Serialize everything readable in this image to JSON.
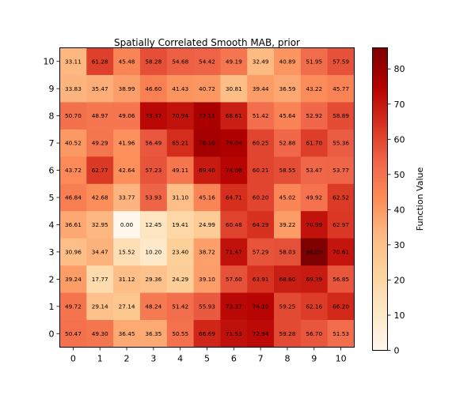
{
  "chart_data": {
    "type": "heatmap",
    "title": "Spatially Correlated Smooth MAB, prior",
    "x_ticks": [
      "0",
      "1",
      "2",
      "3",
      "4",
      "5",
      "6",
      "7",
      "8",
      "9",
      "10"
    ],
    "y_ticks": [
      "0",
      "1",
      "2",
      "3",
      "4",
      "5",
      "6",
      "7",
      "8",
      "9",
      "10"
    ],
    "row_order": "top row is y = 10, bottom row is y = 0",
    "rows": [
      [
        "33.11",
        "61.28",
        "45.48",
        "58.28",
        "54.68",
        "54.42",
        "49.19",
        "32.49",
        "40.89",
        "51.95",
        "57.59"
      ],
      [
        "33.83",
        "35.47",
        "38.99",
        "46.60",
        "41.43",
        "40.72",
        "30.81",
        "39.44",
        "36.59",
        "43.22",
        "45.77"
      ],
      [
        "50.70",
        "48.97",
        "49.06",
        "73.37",
        "70.94",
        "77.11",
        "68.61",
        "51.42",
        "45.64",
        "52.92",
        "58.89"
      ],
      [
        "40.52",
        "49.29",
        "41.96",
        "56.49",
        "65.21",
        "78.10",
        "76.04",
        "60.25",
        "52.88",
        "61.70",
        "55.36"
      ],
      [
        "43.72",
        "62.77",
        "42.64",
        "57.23",
        "49.11",
        "69.40",
        "74.08",
        "60.21",
        "58.55",
        "53.47",
        "53.77"
      ],
      [
        "46.84",
        "42.68",
        "33.77",
        "53.93",
        "31.10",
        "45.16",
        "64.71",
        "60.20",
        "45.02",
        "49.92",
        "62.52"
      ],
      [
        "36.61",
        "32.95",
        "0.00",
        "12.45",
        "19.41",
        "24.99",
        "60.48",
        "64.29",
        "39.22",
        "70.99",
        "62.97"
      ],
      [
        "30.96",
        "34.47",
        "15.52",
        "10.20",
        "23.40",
        "38.72",
        "71.47",
        "57.29",
        "58.03",
        "86.00",
        "70.61"
      ],
      [
        "39.24",
        "17.77",
        "31.12",
        "29.36",
        "24.29",
        "39.10",
        "57.60",
        "63.91",
        "68.60",
        "69.39",
        "56.85"
      ],
      [
        "49.72",
        "29.14",
        "27.14",
        "48.24",
        "51.42",
        "55.93",
        "73.37",
        "74.20",
        "59.25",
        "62.16",
        "66.20"
      ],
      [
        "50.47",
        "49.30",
        "36.45",
        "36.35",
        "50.55",
        "66.69",
        "71.53",
        "72.94",
        "59.28",
        "56.70",
        "51.53"
      ]
    ],
    "colorbar": {
      "label": "Function Value",
      "colormap": "OrRd",
      "vmin": 0,
      "vmax": 86,
      "ticks": [
        "0",
        "10",
        "20",
        "30",
        "40",
        "50",
        "60",
        "70",
        "80"
      ]
    }
  }
}
